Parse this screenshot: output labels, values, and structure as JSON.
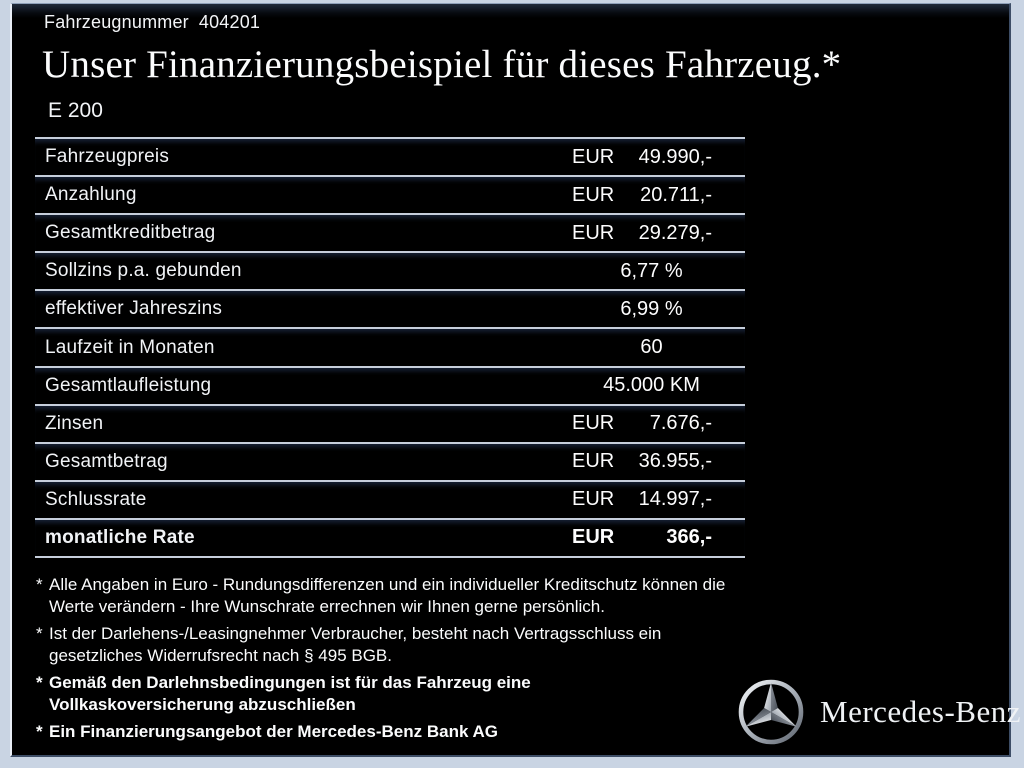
{
  "header": {
    "vehicle_number_label": "Fahrzeugnummer",
    "vehicle_number_value": "404201",
    "title": "Unser Finanzierungsbeispiel für dieses Fahrzeug.*",
    "model": "E 200"
  },
  "table": {
    "rows": [
      {
        "label": "Fahrzeugpreis",
        "currency": "EUR",
        "value": "49.990,-",
        "bold": false
      },
      {
        "label": "Anzahlung",
        "currency": "EUR",
        "value": "20.711,-",
        "bold": false
      },
      {
        "label": "Gesamtkreditbetrag",
        "currency": "EUR",
        "value": "29.279,-",
        "bold": false
      },
      {
        "label": "Sollzins p.a. gebunden",
        "currency": "",
        "value": "6,77 %",
        "bold": false
      },
      {
        "label": "effektiver Jahreszins",
        "currency": "",
        "value": "6,99 %",
        "bold": false
      },
      {
        "label": "Laufzeit in Monaten",
        "currency": "",
        "value": "60",
        "bold": false
      },
      {
        "label": "Gesamtlaufleistung",
        "currency": "",
        "value": "45.000 KM",
        "bold": false
      },
      {
        "label": "Zinsen",
        "currency": "EUR",
        "value": "7.676,-",
        "bold": false
      },
      {
        "label": "Gesamtbetrag",
        "currency": "EUR",
        "value": "36.955,-",
        "bold": false
      },
      {
        "label": "Schlussrate",
        "currency": "EUR",
        "value": "14.997,-",
        "bold": false
      },
      {
        "label": "monatliche Rate",
        "currency": "EUR",
        "value": "366,-",
        "bold": true
      }
    ]
  },
  "footnotes": [
    {
      "marker": "*",
      "bold": false,
      "lines": [
        "Alle Angaben in Euro - Rundungsdifferenzen und ein individueller Kreditschutz können die",
        "Werte verändern - Ihre Wunschrate errechnen wir Ihnen gerne persönlich."
      ]
    },
    {
      "marker": "*",
      "bold": false,
      "lines": [
        "Ist der Darlehens-/Leasingnehmer Verbraucher, besteht nach Vertragsschluss ein",
        "gesetzliches Widerrufsrecht nach § 495 BGB."
      ]
    },
    {
      "marker": "*",
      "bold": true,
      "lines": [
        "Gemäß den Darlehnsbedingungen ist für das Fahrzeug eine",
        "Vollkaskoversicherung abzuschließen"
      ]
    },
    {
      "marker": "*",
      "bold": true,
      "lines": [
        "Ein Finanzierungsangebot der Mercedes-Benz Bank AG"
      ]
    }
  ],
  "brand": {
    "logo_icon": "mercedes-star-icon",
    "wordmark": "Mercedes-Benz"
  },
  "colors": {
    "page_background": "#000000",
    "frame_border": "#c9d4e3",
    "divider_line": "#c6cedb",
    "divider_shadow": "#172236",
    "text": "#f4f6f8"
  }
}
